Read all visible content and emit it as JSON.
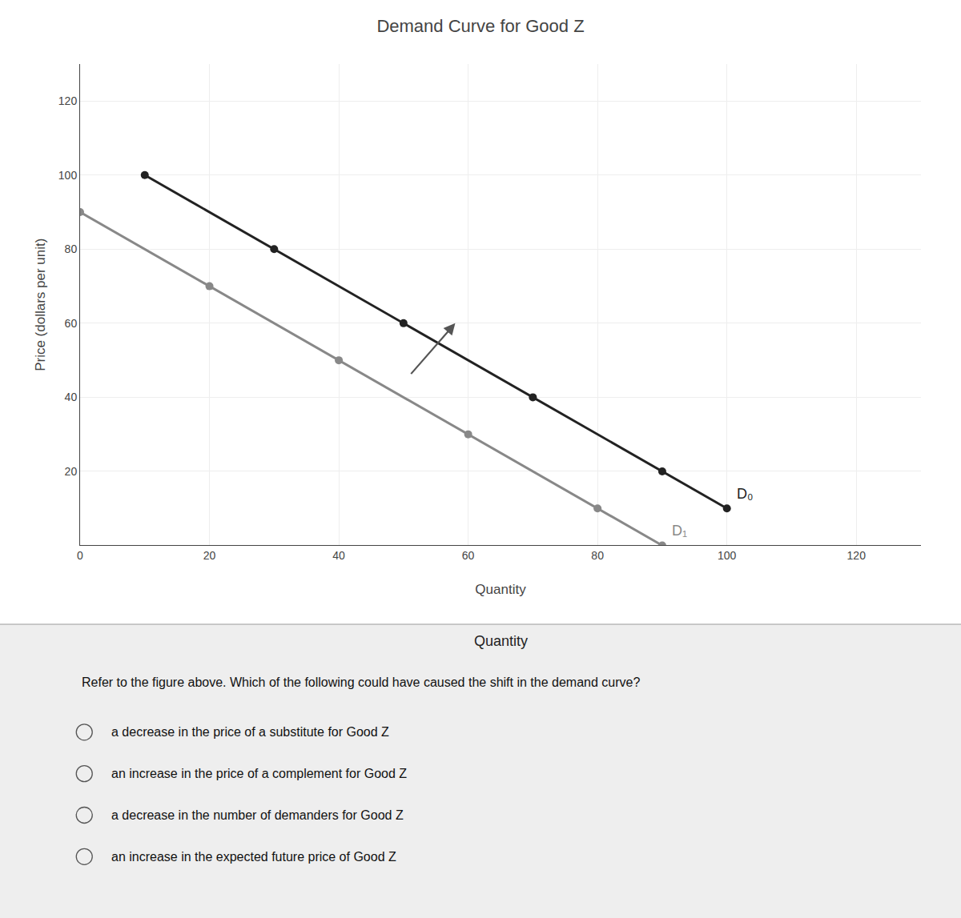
{
  "chart_data": {
    "type": "line",
    "title": "Demand Curve for Good Z",
    "x_label": "Quantity",
    "y_label": "Price (dollars per unit)",
    "xlim": [
      0,
      130
    ],
    "ylim": [
      0,
      130
    ],
    "xticks": [
      0,
      20,
      40,
      60,
      80,
      100,
      120
    ],
    "yticks": [
      20,
      40,
      60,
      80,
      100,
      120
    ],
    "grid": true,
    "marker": "circle",
    "series": [
      {
        "name": "D₀",
        "color": "#222222",
        "x": [
          10,
          30,
          50,
          70,
          90,
          100
        ],
        "values": [
          100,
          80,
          60,
          40,
          20,
          10
        ]
      },
      {
        "name": "D₁",
        "color": "#888888",
        "x": [
          0,
          20,
          40,
          60,
          80,
          90
        ],
        "values": [
          90,
          70,
          50,
          30,
          10,
          0
        ]
      }
    ],
    "arrows": [
      {
        "x0": 51,
        "y0": 46,
        "x1": 58,
        "y1": 60
      }
    ],
    "footer_label": "Quantity",
    "question": "Refer to the figure above. Which of the following could have caused the shift in the demand curve?",
    "options": [
      "a decrease in the price of a substitute for Good Z",
      "an increase in the price of a complement for Good Z",
      "a decrease in the number of demanders for Good Z",
      "an increase in the expected future price of Good Z"
    ]
  }
}
